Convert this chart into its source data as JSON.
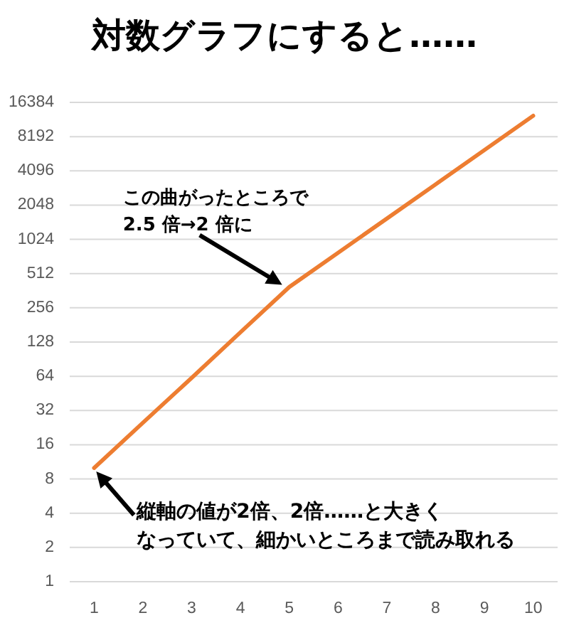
{
  "chart_data": {
    "type": "line",
    "title": "対数グラフにすると……",
    "categories": [
      "1",
      "2",
      "3",
      "4",
      "5",
      "6",
      "7",
      "8",
      "9",
      "10"
    ],
    "series": [
      {
        "color": "#ed7d31",
        "values": [
          10,
          25,
          62,
          156,
          390,
          780,
          1560,
          3120,
          6250,
          12500
        ]
      }
    ],
    "log": "y",
    "ylim": [
      1,
      16384
    ],
    "yticks": [
      1,
      2,
      4,
      8,
      16,
      32,
      64,
      128,
      256,
      512,
      1024,
      2048,
      4096,
      8192,
      16384
    ],
    "grid": "y",
    "annotations": [
      {
        "text": "この曲がったところで2.5 倍→2 倍に",
        "x": "5",
        "y": 390
      },
      {
        "text": "縦軸の値が2倍、2倍……と大きくなっていて、細かいところまで読み取れる",
        "x": "1",
        "y": 10
      }
    ]
  }
}
